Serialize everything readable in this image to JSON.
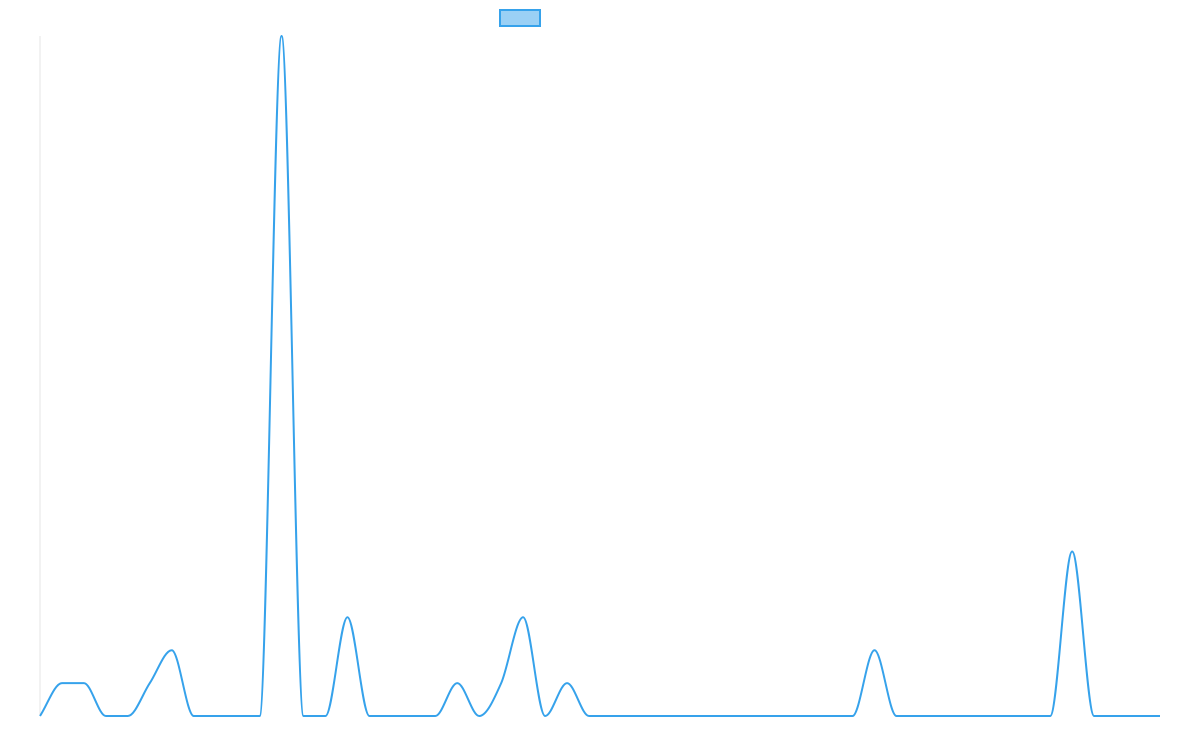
{
  "chart_data": {
    "type": "line",
    "title": "",
    "xlabel": "",
    "ylabel": "",
    "legend": {
      "position": "top-center",
      "entries": [
        ""
      ]
    },
    "grid": false,
    "xlim": [
      0,
      51
    ],
    "ylim": [
      0,
      31
    ],
    "x": [
      0,
      1,
      2,
      3,
      4,
      5,
      6,
      7,
      8,
      9,
      10,
      11,
      12,
      13,
      14,
      15,
      16,
      17,
      18,
      19,
      20,
      21,
      22,
      23,
      24,
      25,
      26,
      27,
      28,
      29,
      30,
      31,
      32,
      33,
      34,
      35,
      36,
      37,
      38,
      39,
      40,
      41,
      42,
      43,
      44,
      45,
      46,
      47,
      48,
      49,
      50,
      51
    ],
    "series": [
      {
        "name": "",
        "color": "#36a2eb",
        "fill": "#9ad0f5",
        "values": [
          0,
          1.5,
          1.5,
          0,
          0,
          1.5,
          3,
          0,
          0,
          0,
          0,
          31,
          0,
          0,
          4.5,
          0,
          0,
          0,
          0,
          1.5,
          0,
          1.5,
          4.5,
          0,
          1.5,
          0,
          0,
          0,
          0,
          0,
          0,
          0,
          0,
          0,
          0,
          0,
          0,
          0,
          3,
          0,
          0,
          0,
          0,
          0,
          0,
          0,
          0,
          7.5,
          0,
          0,
          0,
          0
        ]
      }
    ]
  }
}
